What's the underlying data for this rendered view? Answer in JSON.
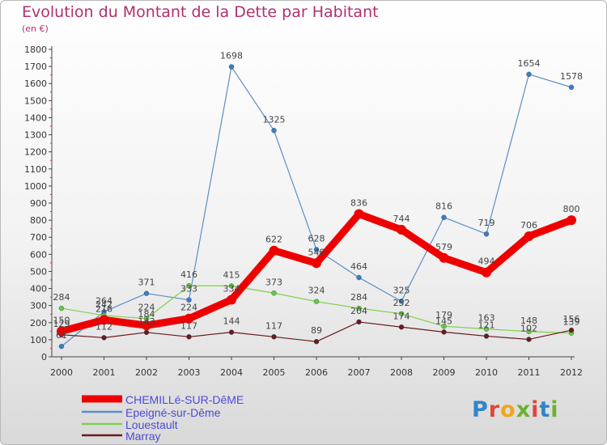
{
  "title": "Evolution du Montant de la Dette par Habitant",
  "subtitle": "(en €)",
  "logo_text": "Proxiti",
  "chart_data": {
    "type": "line",
    "title": "Evolution du Montant de la Dette par Habitant",
    "ylabel": "(en €)",
    "x": [
      "2000",
      "2001",
      "2002",
      "2003",
      "2004",
      "2005",
      "2006",
      "2007",
      "2008",
      "2009",
      "2010",
      "2011",
      "2012"
    ],
    "ylim": [
      0,
      1800
    ],
    "yticks": [
      0,
      100,
      200,
      300,
      400,
      500,
      600,
      700,
      800,
      900,
      1000,
      1100,
      1200,
      1300,
      1400,
      1500,
      1600,
      1700,
      1800
    ],
    "grid": false,
    "legend": "bottom-left",
    "series": [
      {
        "name": "Epeigné-sur-Dême",
        "color": "#5a8fc8",
        "point_color": "#3d7cc0",
        "values": [
          61,
          264,
          371,
          333,
          1698,
          1325,
          628,
          464,
          325,
          816,
          719,
          1654,
          1578
        ]
      },
      {
        "name": "Louestault",
        "color": "#7fd04c",
        "point_color": "#69c93a",
        "values": [
          284,
          242,
          224,
          416,
          415,
          373,
          324,
          284,
          252,
          179,
          163,
          148,
          139
        ]
      },
      {
        "name": "Marray",
        "color": "#6b1a1a",
        "point_color": "#6b1a1a",
        "values": [
          129,
          112,
          143,
          117,
          144,
          117,
          89,
          204,
          174,
          145,
          121,
          102,
          156
        ]
      },
      {
        "name": "CHEMILLé-SUR-DêME",
        "color": "#ee0000",
        "point_color": "#ee0000",
        "values": [
          150,
          216,
          184,
          224,
          334,
          622,
          548,
          836,
          744,
          579,
          494,
          706,
          800
        ]
      }
    ]
  }
}
